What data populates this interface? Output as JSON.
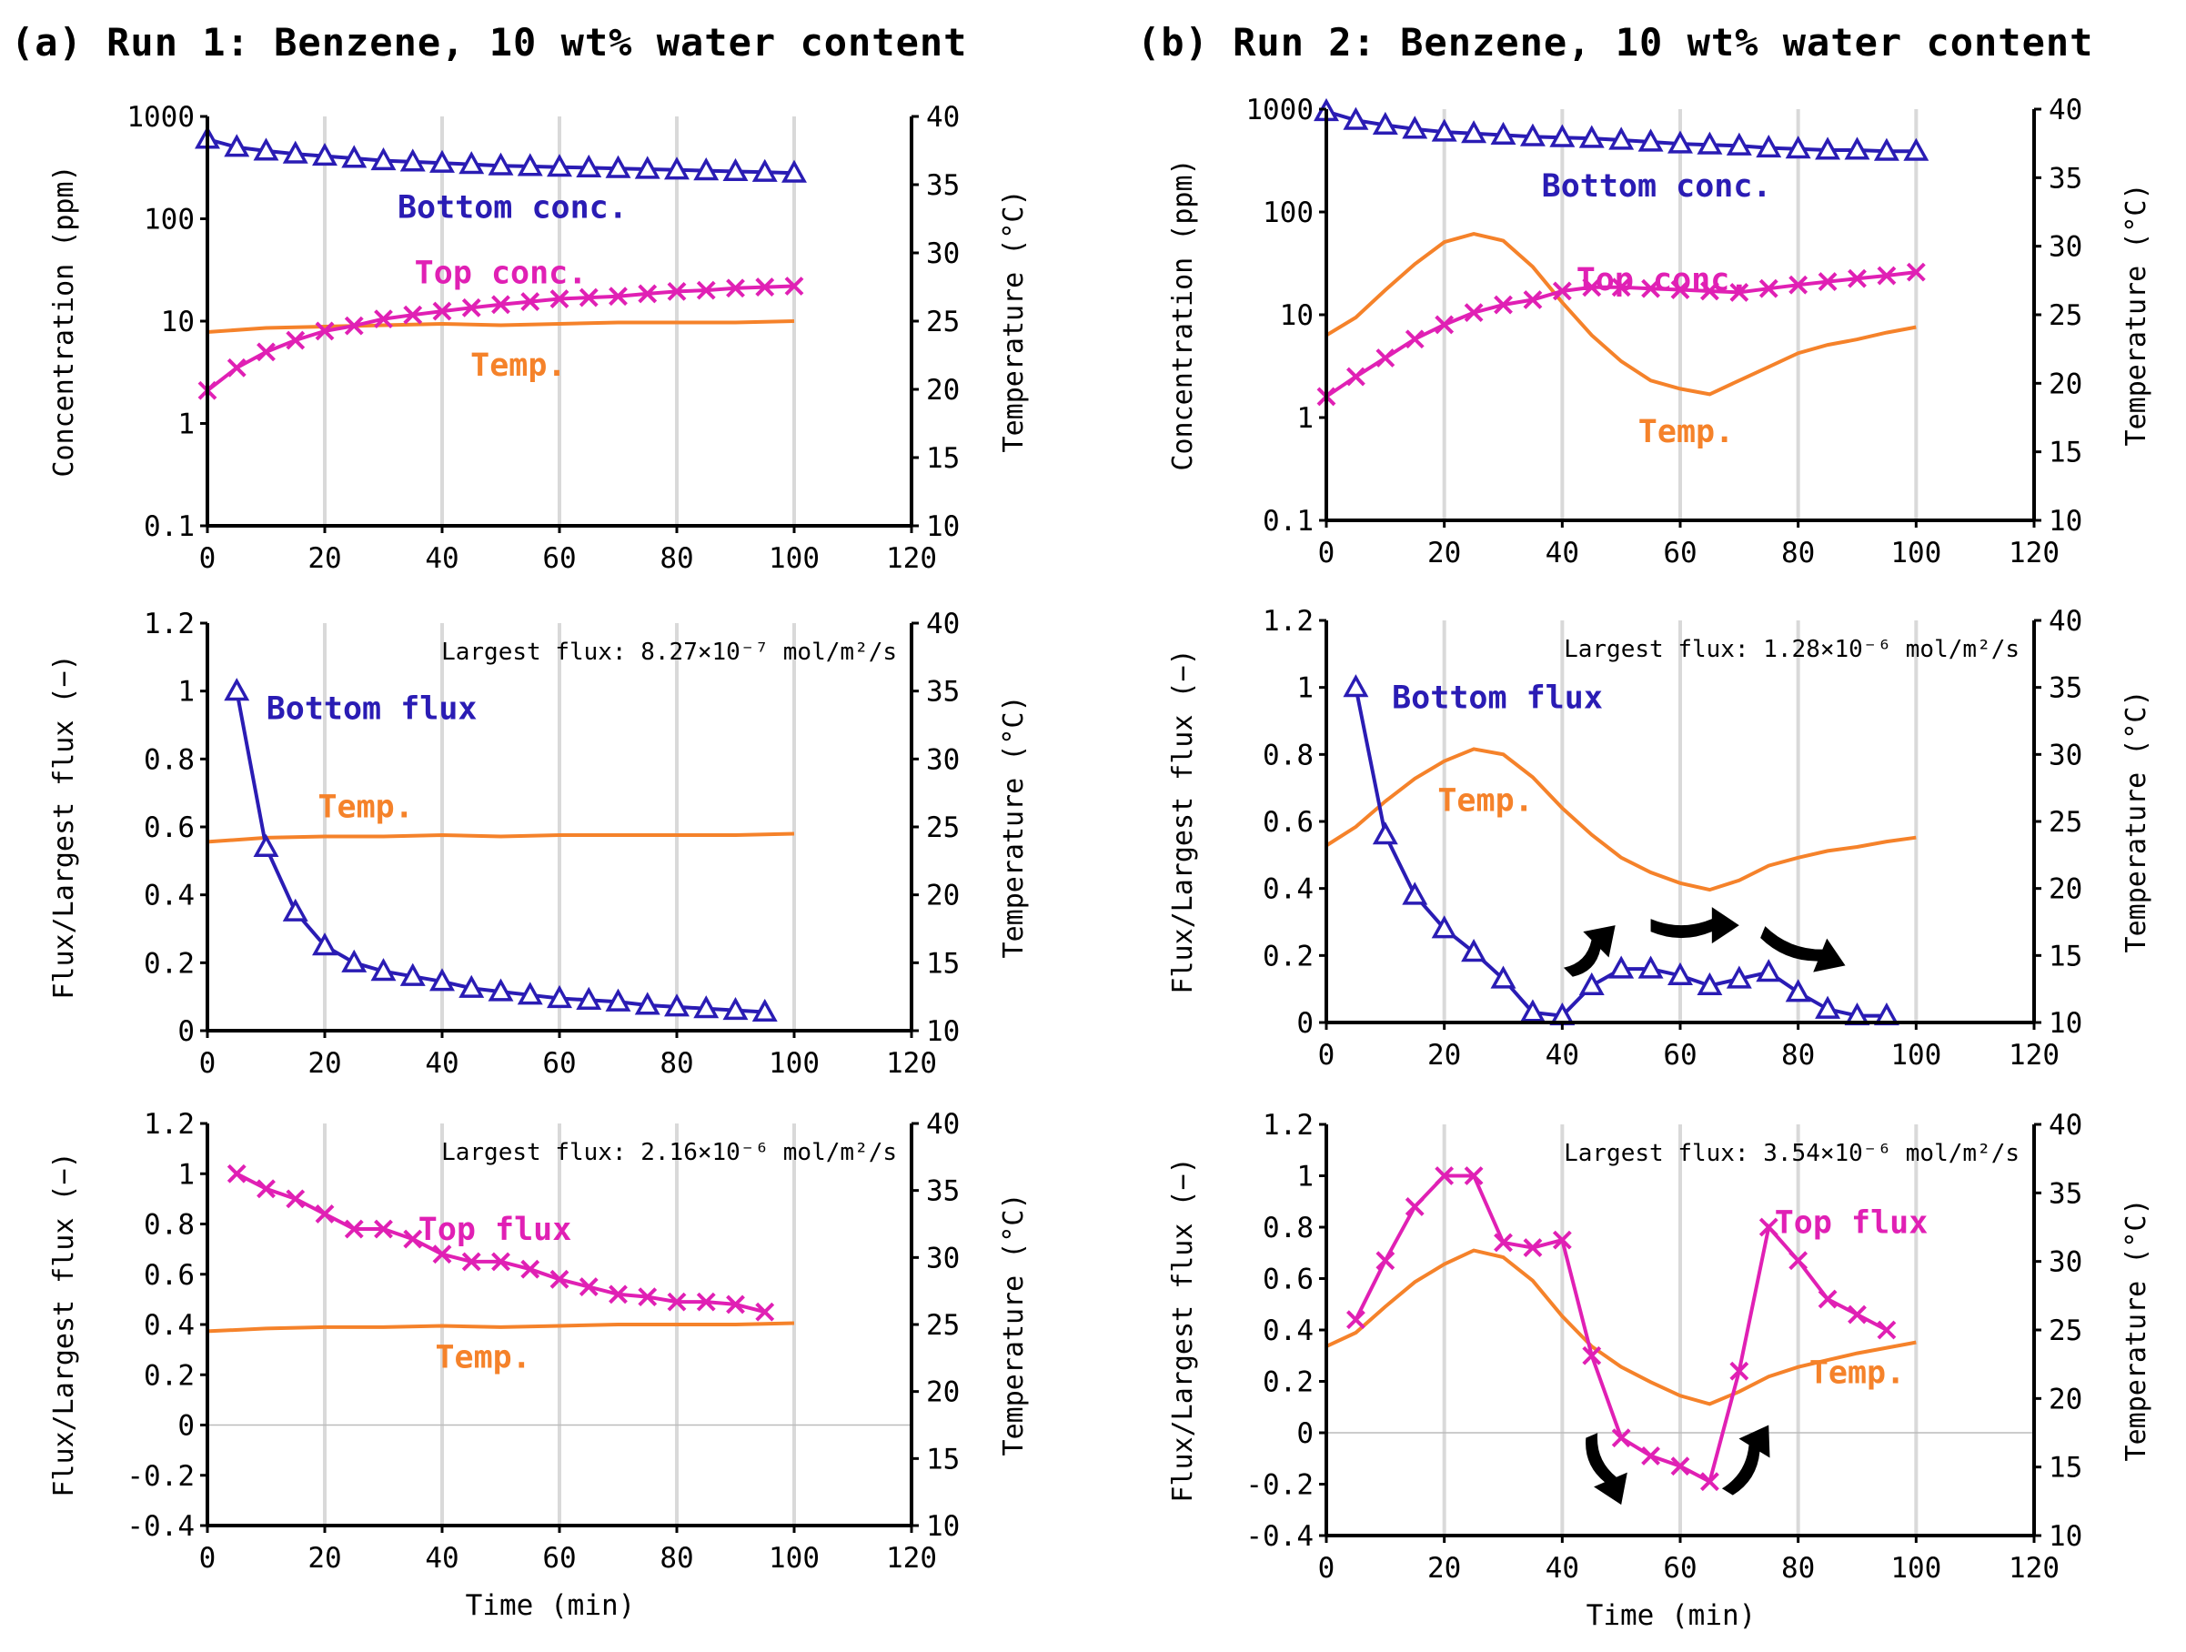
{
  "panels": [
    {
      "title": "(a) Run 1: Benzene, 10 wt%  water content"
    },
    {
      "title": "(b) Run 2: Benzene, 10 wt%  water content"
    }
  ],
  "colors": {
    "bottom": "#2a1cb4",
    "top": "#e020b4",
    "temp": "#f5822a",
    "grid": "#d9d9d9",
    "arrow": "#000000"
  },
  "chart_data": [
    {
      "id": "a1",
      "type": "line",
      "ylabel": "Concentration (ppm)",
      "y2label": "Temperature (°C)",
      "yscale": "log",
      "ylim": [
        0.1,
        1000
      ],
      "yticks": [
        0.1,
        1,
        10,
        100,
        1000
      ],
      "ytick_labels": [
        "0.1",
        "1",
        "10",
        "100",
        "1000"
      ],
      "y2lim": [
        10,
        40
      ],
      "y2ticks": [
        10,
        15,
        20,
        25,
        30,
        35,
        40
      ],
      "xlim": [
        0,
        120
      ],
      "xticks": [
        0,
        20,
        40,
        60,
        80,
        100,
        120
      ],
      "xlabel": "",
      "series": [
        {
          "name": "Bottom conc.",
          "role": "bottom",
          "marker": "triangle",
          "x": [
            0,
            5,
            10,
            15,
            20,
            25,
            30,
            35,
            40,
            45,
            50,
            55,
            60,
            65,
            70,
            75,
            80,
            85,
            90,
            95,
            100
          ],
          "y": [
            600,
            500,
            460,
            430,
            410,
            390,
            370,
            360,
            350,
            340,
            330,
            325,
            320,
            315,
            310,
            305,
            300,
            295,
            290,
            285,
            280
          ]
        },
        {
          "name": "Top conc.",
          "role": "top",
          "marker": "x",
          "x": [
            0,
            5,
            10,
            15,
            20,
            25,
            30,
            35,
            40,
            45,
            50,
            55,
            60,
            65,
            70,
            75,
            80,
            85,
            90,
            95,
            100
          ],
          "y": [
            2.1,
            3.5,
            5,
            6.5,
            8,
            9,
            10.5,
            11.5,
            12.5,
            13.5,
            14.5,
            15.5,
            16.5,
            17,
            17.5,
            18.5,
            19.5,
            20,
            21,
            21.5,
            22
          ]
        },
        {
          "name": "Temp.",
          "role": "temp",
          "axis": "right",
          "x": [
            0,
            10,
            20,
            30,
            40,
            50,
            60,
            70,
            80,
            90,
            100
          ],
          "y": [
            24.2,
            24.5,
            24.6,
            24.7,
            24.8,
            24.7,
            24.8,
            24.9,
            24.9,
            24.9,
            25
          ]
        }
      ],
      "labels": [
        {
          "text": "Bottom conc.",
          "role": "bottom",
          "x": 52,
          "y": 130,
          "axis": "left"
        },
        {
          "text": "Top conc.",
          "role": "top",
          "x": 50,
          "y": 30,
          "axis": "left"
        },
        {
          "text": "Temp.",
          "role": "temp",
          "x": 53,
          "y": 21.8,
          "axis": "right"
        }
      ]
    },
    {
      "id": "a2",
      "type": "line",
      "ylabel": "Flux/Largest flux (−)",
      "y2label": "Temperature (°C)",
      "yscale": "linear",
      "ylim": [
        0,
        1.2
      ],
      "yticks": [
        0,
        0.2,
        0.4,
        0.6,
        0.8,
        1,
        1.2
      ],
      "ytick_labels": [
        "0",
        "0.2",
        "0.4",
        "0.6",
        "0.8",
        "1",
        "1.2"
      ],
      "y2lim": [
        10,
        40
      ],
      "y2ticks": [
        10,
        15,
        20,
        25,
        30,
        35,
        40
      ],
      "xlim": [
        0,
        120
      ],
      "xticks": [
        0,
        20,
        40,
        60,
        80,
        100,
        120
      ],
      "xlabel": "",
      "annotation": "Largest flux: 8.27×10⁻⁷ mol/m²/s",
      "series": [
        {
          "name": "Bottom flux",
          "role": "bottom",
          "marker": "triangle",
          "x": [
            5,
            10,
            15,
            20,
            25,
            30,
            35,
            40,
            45,
            50,
            55,
            60,
            65,
            70,
            75,
            80,
            85,
            90,
            95
          ],
          "y": [
            1,
            0.54,
            0.35,
            0.25,
            0.2,
            0.175,
            0.16,
            0.145,
            0.125,
            0.115,
            0.105,
            0.095,
            0.09,
            0.085,
            0.075,
            0.07,
            0.065,
            0.06,
            0.055
          ]
        },
        {
          "name": "Temp.",
          "role": "temp",
          "axis": "right",
          "x": [
            0,
            10,
            20,
            30,
            40,
            50,
            60,
            70,
            80,
            90,
            100
          ],
          "y": [
            23.9,
            24.2,
            24.3,
            24.3,
            24.4,
            24.3,
            24.4,
            24.4,
            24.4,
            24.4,
            24.5
          ]
        }
      ],
      "labels": [
        {
          "text": "Bottom flux",
          "role": "bottom",
          "x": 28,
          "y": 0.95,
          "axis": "left"
        },
        {
          "text": "Temp.",
          "role": "temp",
          "x": 27,
          "y": 26.5,
          "axis": "right"
        }
      ]
    },
    {
      "id": "a3",
      "type": "line",
      "ylabel": "Flux/Largest flux (−)",
      "y2label": "Temperature (°C)",
      "yscale": "linear",
      "ylim": [
        -0.4,
        1.2
      ],
      "yticks": [
        -0.4,
        -0.2,
        0,
        0.2,
        0.4,
        0.6,
        0.8,
        1,
        1.2
      ],
      "ytick_labels": [
        "-0.4",
        "-0.2",
        "0",
        "0.2",
        "0.4",
        "0.6",
        "0.8",
        "1",
        "1.2"
      ],
      "y2lim": [
        10,
        40
      ],
      "y2ticks": [
        10,
        15,
        20,
        25,
        30,
        35,
        40
      ],
      "xlim": [
        0,
        120
      ],
      "xticks": [
        0,
        20,
        40,
        60,
        80,
        100,
        120
      ],
      "xlabel": "Time (min)",
      "annotation": "Largest flux: 2.16×10⁻⁶ mol/m²/s",
      "series": [
        {
          "name": "Top flux",
          "role": "top",
          "marker": "x",
          "x": [
            5,
            10,
            15,
            20,
            25,
            30,
            35,
            40,
            45,
            50,
            55,
            60,
            65,
            70,
            75,
            80,
            85,
            90,
            95
          ],
          "y": [
            1,
            0.94,
            0.9,
            0.84,
            0.78,
            0.78,
            0.74,
            0.68,
            0.65,
            0.65,
            0.62,
            0.58,
            0.55,
            0.52,
            0.51,
            0.49,
            0.49,
            0.48,
            0.45
          ]
        },
        {
          "name": "Temp.",
          "role": "temp",
          "axis": "right",
          "x": [
            0,
            10,
            20,
            30,
            40,
            50,
            60,
            70,
            80,
            90,
            100
          ],
          "y": [
            24.5,
            24.7,
            24.8,
            24.8,
            24.9,
            24.8,
            24.9,
            25,
            25,
            25,
            25.1
          ]
        }
      ],
      "labels": [
        {
          "text": "Top flux",
          "role": "top",
          "x": 49,
          "y": 0.78,
          "axis": "left"
        },
        {
          "text": "Temp.",
          "role": "temp",
          "x": 47,
          "y": 22.6,
          "axis": "right"
        }
      ]
    },
    {
      "id": "b1",
      "type": "line",
      "ylabel": "Concentration (ppm)",
      "y2label": "Temperature (°C)",
      "yscale": "log",
      "ylim": [
        0.1,
        1000
      ],
      "yticks": [
        0.1,
        1,
        10,
        100,
        1000
      ],
      "ytick_labels": [
        "0.1",
        "1",
        "10",
        "100",
        "1000"
      ],
      "y2lim": [
        10,
        40
      ],
      "y2ticks": [
        10,
        15,
        20,
        25,
        30,
        35,
        40
      ],
      "xlim": [
        0,
        120
      ],
      "xticks": [
        0,
        20,
        40,
        60,
        80,
        100,
        120
      ],
      "xlabel": "",
      "series": [
        {
          "name": "Bottom conc.",
          "role": "bottom",
          "marker": "triangle",
          "x": [
            0,
            5,
            10,
            15,
            20,
            25,
            30,
            35,
            40,
            45,
            50,
            55,
            60,
            65,
            70,
            75,
            80,
            85,
            90,
            95,
            100
          ],
          "y": [
            950,
            780,
            700,
            640,
            600,
            580,
            560,
            540,
            530,
            520,
            500,
            480,
            460,
            450,
            440,
            420,
            410,
            400,
            400,
            390,
            390
          ]
        },
        {
          "name": "Top conc.",
          "role": "top",
          "marker": "x",
          "x": [
            0,
            5,
            10,
            15,
            20,
            25,
            30,
            35,
            40,
            45,
            50,
            55,
            60,
            65,
            70,
            75,
            80,
            85,
            90,
            95,
            100
          ],
          "y": [
            1.6,
            2.5,
            3.8,
            5.8,
            8,
            10.5,
            12.5,
            14,
            17,
            18.5,
            18.5,
            18,
            17.5,
            17,
            16.5,
            18,
            19.5,
            21,
            22.5,
            24,
            26
          ]
        },
        {
          "name": "Temp.",
          "role": "temp",
          "axis": "right",
          "x": [
            0,
            5,
            10,
            15,
            20,
            25,
            30,
            35,
            40,
            45,
            50,
            55,
            60,
            65,
            70,
            75,
            80,
            85,
            90,
            95,
            100
          ],
          "y": [
            23.5,
            24.8,
            26.8,
            28.7,
            30.3,
            30.9,
            30.4,
            28.5,
            25.9,
            23.5,
            21.6,
            20.2,
            19.6,
            19.2,
            20.2,
            21.2,
            22.2,
            22.8,
            23.2,
            23.7,
            24.1
          ]
        }
      ],
      "labels": [
        {
          "text": "Bottom conc.",
          "role": "bottom",
          "x": 56,
          "y": 180,
          "axis": "left"
        },
        {
          "text": "Top conc.",
          "role": "top",
          "x": 57,
          "y": 27.6,
          "axis": "right"
        },
        {
          "text": "Temp.",
          "role": "temp",
          "x": 61,
          "y": 16.5,
          "axis": "right"
        }
      ]
    },
    {
      "id": "b2",
      "type": "line",
      "ylabel": "Flux/Largest flux (−)",
      "y2label": "Temperature (°C)",
      "yscale": "linear",
      "ylim": [
        0,
        1.2
      ],
      "yticks": [
        0,
        0.2,
        0.4,
        0.6,
        0.8,
        1,
        1.2
      ],
      "ytick_labels": [
        "0",
        "0.2",
        "0.4",
        "0.6",
        "0.8",
        "1",
        "1.2"
      ],
      "y2lim": [
        10,
        40
      ],
      "y2ticks": [
        10,
        15,
        20,
        25,
        30,
        35,
        40
      ],
      "xlim": [
        0,
        120
      ],
      "xticks": [
        0,
        20,
        40,
        60,
        80,
        100,
        120
      ],
      "xlabel": "",
      "annotation": "Largest flux: 1.28×10⁻⁶ mol/m²/s",
      "series": [
        {
          "name": "Bottom flux",
          "role": "bottom",
          "marker": "triangle",
          "x": [
            5,
            10,
            15,
            20,
            25,
            30,
            35,
            40,
            45,
            50,
            55,
            60,
            65,
            70,
            75,
            80,
            85,
            90,
            95
          ],
          "y": [
            1,
            0.56,
            0.38,
            0.28,
            0.21,
            0.13,
            0.03,
            0.02,
            0.11,
            0.16,
            0.16,
            0.14,
            0.11,
            0.13,
            0.15,
            0.09,
            0.04,
            0.02,
            0.02
          ]
        },
        {
          "name": "Temp.",
          "role": "temp",
          "axis": "right",
          "x": [
            0,
            5,
            10,
            15,
            20,
            25,
            30,
            35,
            40,
            45,
            50,
            55,
            60,
            65,
            70,
            75,
            80,
            85,
            90,
            95,
            100
          ],
          "y": [
            23.2,
            24.6,
            26.5,
            28.2,
            29.5,
            30.4,
            30,
            28.3,
            26,
            24,
            22.3,
            21.2,
            20.4,
            19.9,
            20.6,
            21.7,
            22.3,
            22.8,
            23.1,
            23.5,
            23.8
          ]
        }
      ],
      "labels": [
        {
          "text": "Bottom flux",
          "role": "bottom",
          "x": 29,
          "y": 0.97,
          "axis": "left"
        },
        {
          "text": "Temp.",
          "role": "temp",
          "x": 27,
          "y": 26.6,
          "axis": "right"
        }
      ],
      "arrows": [
        {
          "x1": 41,
          "y1": 0.15,
          "x2": 49,
          "y2": 0.29
        },
        {
          "x1": 55,
          "y1": 0.29,
          "x2": 70,
          "y2": 0.29
        },
        {
          "x1": 74,
          "y1": 0.27,
          "x2": 88,
          "y2": 0.17
        }
      ]
    },
    {
      "id": "b3",
      "type": "line",
      "ylabel": "Flux/Largest flux (−)",
      "y2label": "Temperature (°C)",
      "yscale": "linear",
      "ylim": [
        -0.4,
        1.2
      ],
      "yticks": [
        -0.4,
        -0.2,
        0,
        0.2,
        0.4,
        0.6,
        0.8,
        1,
        1.2
      ],
      "ytick_labels": [
        "-0.4",
        "-0.2",
        "0",
        "0.2",
        "0.4",
        "0.6",
        "0.8",
        "1",
        "1.2"
      ],
      "y2lim": [
        10,
        40
      ],
      "y2ticks": [
        10,
        15,
        20,
        25,
        30,
        35,
        40
      ],
      "xlim": [
        0,
        120
      ],
      "xticks": [
        0,
        20,
        40,
        60,
        80,
        100,
        120
      ],
      "xlabel": "Time (min)",
      "annotation": "Largest flux: 3.54×10⁻⁶ mol/m²/s",
      "series": [
        {
          "name": "Top flux",
          "role": "top",
          "marker": "x",
          "x": [
            5,
            10,
            15,
            20,
            25,
            30,
            35,
            40,
            45,
            50,
            55,
            60,
            65,
            70,
            75,
            80,
            85,
            90,
            95
          ],
          "y": [
            0.44,
            0.67,
            0.88,
            1,
            1,
            0.74,
            0.72,
            0.75,
            0.3,
            -0.02,
            -0.09,
            -0.13,
            -0.19,
            0.24,
            0.8,
            0.67,
            0.52,
            0.46,
            0.4
          ]
        },
        {
          "name": "Temp.",
          "role": "temp",
          "axis": "right",
          "x": [
            0,
            5,
            10,
            15,
            20,
            25,
            30,
            35,
            40,
            45,
            50,
            55,
            60,
            65,
            70,
            75,
            80,
            85,
            90,
            95,
            100
          ],
          "y": [
            23.8,
            24.8,
            26.7,
            28.5,
            29.8,
            30.8,
            30.3,
            28.6,
            26,
            23.8,
            22.3,
            21.2,
            20.2,
            19.6,
            20.5,
            21.6,
            22.3,
            22.8,
            23.3,
            23.7,
            24.1
          ]
        }
      ],
      "labels": [
        {
          "text": "Top flux",
          "role": "top",
          "x": 89,
          "y": 0.82,
          "axis": "left"
        },
        {
          "text": "Temp.",
          "role": "temp",
          "x": 90,
          "y": 21.9,
          "axis": "right"
        }
      ],
      "arrows": [
        {
          "x1": 45,
          "y1": -0.01,
          "x2": 50,
          "y2": -0.28
        },
        {
          "x1": 68,
          "y1": -0.23,
          "x2": 75,
          "y2": 0.03
        }
      ]
    }
  ]
}
